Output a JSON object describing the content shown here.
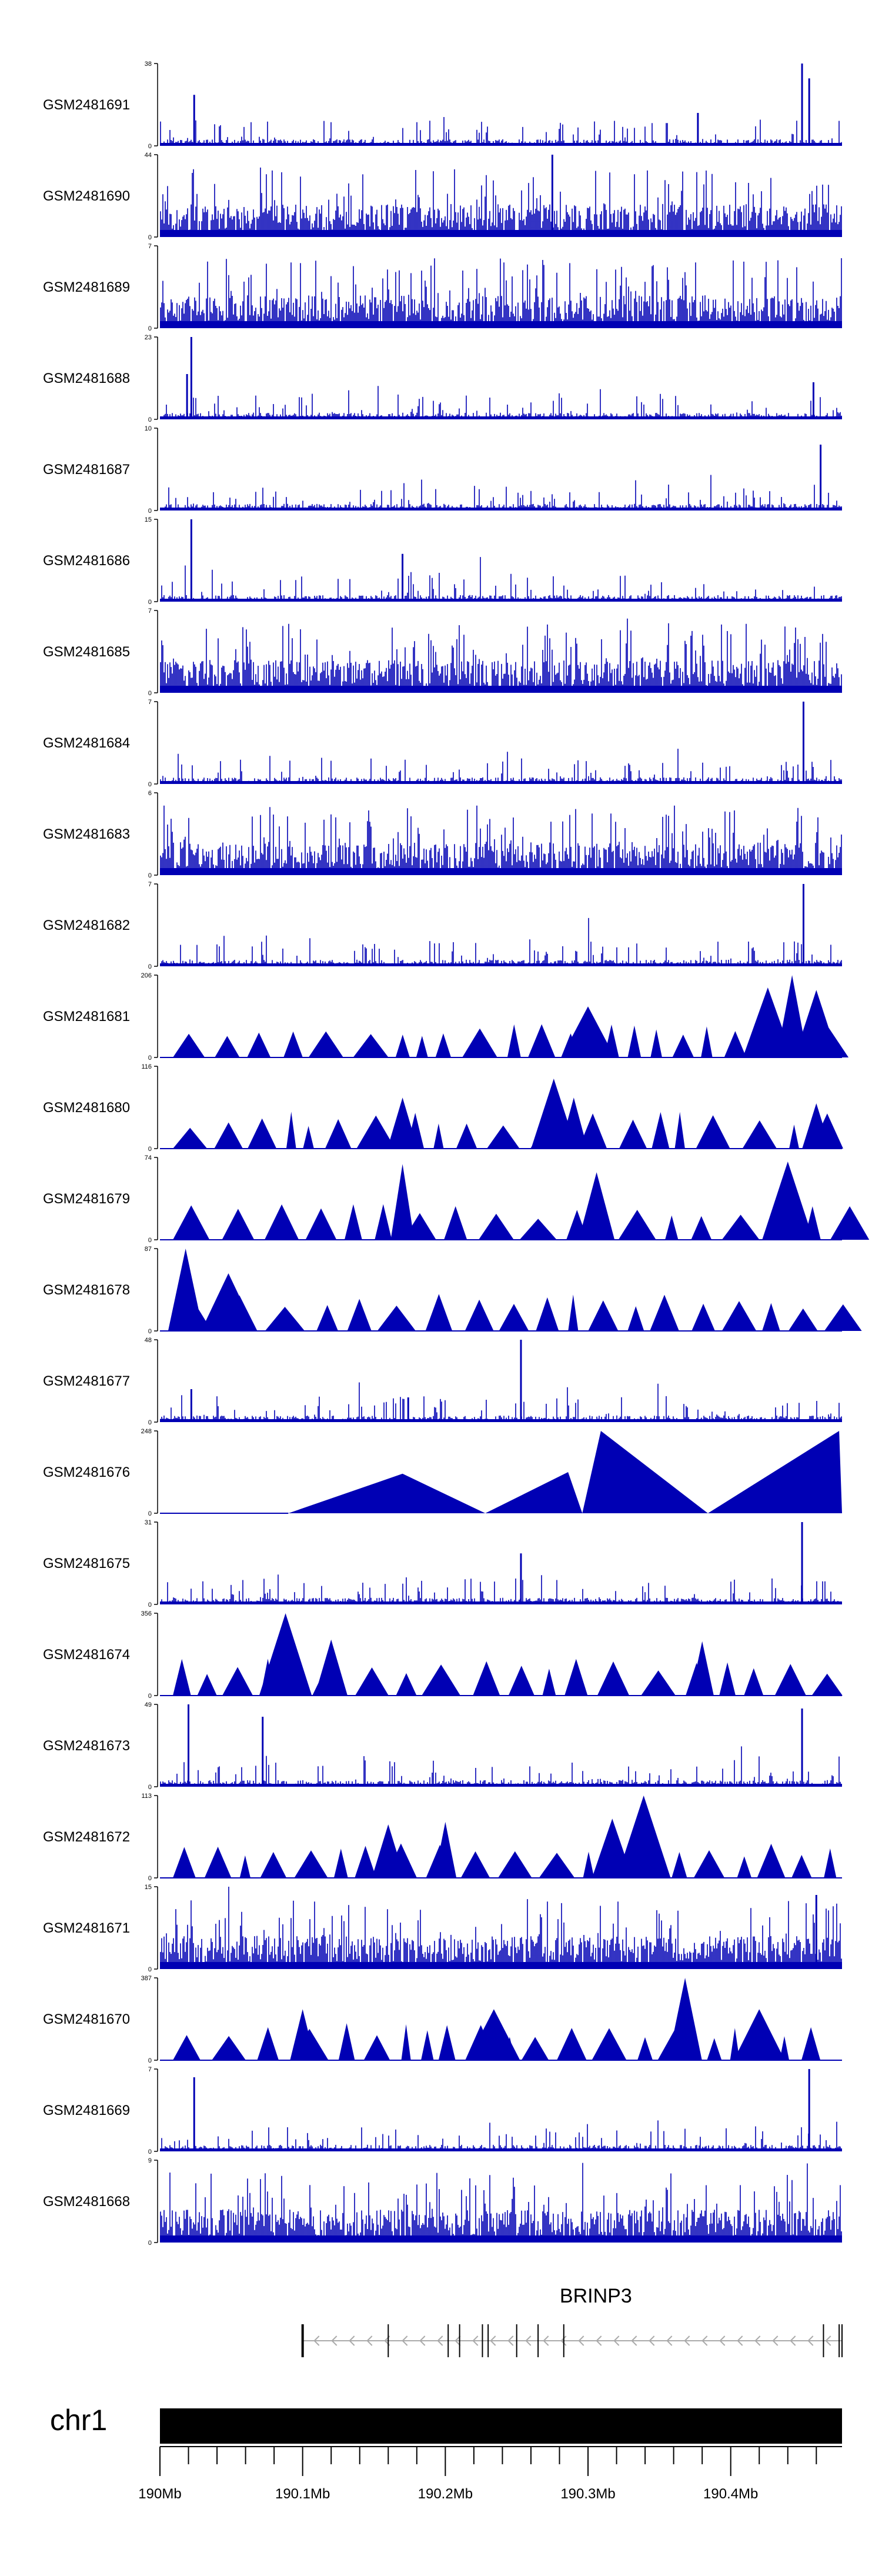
{
  "colors": {
    "signal": "#0000b4",
    "axis": "#000000",
    "gene": "#000000",
    "intron_arrow": "#aaaaaa"
  },
  "chart_data": {
    "type": "genome_tracks",
    "tracks": [
      {
        "name": "GSM2481691",
        "ymax": "38",
        "ymin": "0",
        "style": "bars",
        "seed": 11,
        "peaks": [
          {
            "x": 190.024,
            "v": 0.62
          },
          {
            "x": 190.377,
            "v": 0.4
          },
          {
            "x": 190.45,
            "v": 1.0
          },
          {
            "x": 190.455,
            "v": 0.82
          }
        ]
      },
      {
        "name": "GSM2481690",
        "ymax": "44",
        "ymin": "0",
        "style": "bars_dense",
        "seed": 12,
        "peaks": [
          {
            "x": 190.275,
            "v": 1.0
          }
        ]
      },
      {
        "name": "GSM2481689",
        "ymax": "7",
        "ymin": "0",
        "style": "bars_dense",
        "seed": 13,
        "peaks": []
      },
      {
        "name": "GSM2481688",
        "ymax": "23",
        "ymin": "0",
        "style": "bars",
        "seed": 14,
        "peaks": [
          {
            "x": 190.022,
            "v": 1.0
          },
          {
            "x": 190.019,
            "v": 0.55
          },
          {
            "x": 190.458,
            "v": 0.45
          }
        ]
      },
      {
        "name": "GSM2481687",
        "ymax": "10",
        "ymin": "0",
        "style": "bars",
        "seed": 15,
        "peaks": [
          {
            "x": 190.463,
            "v": 0.8
          }
        ]
      },
      {
        "name": "GSM2481686",
        "ymax": "15",
        "ymin": "0",
        "style": "bars",
        "seed": 16,
        "peaks": [
          {
            "x": 190.022,
            "v": 1.0
          },
          {
            "x": 190.17,
            "v": 0.58
          }
        ]
      },
      {
        "name": "GSM2481685",
        "ymax": "7",
        "ymin": "0",
        "style": "bars_dense",
        "seed": 17,
        "peaks": []
      },
      {
        "name": "GSM2481684",
        "ymax": "7",
        "ymin": "0",
        "style": "bars",
        "seed": 18,
        "peaks": [
          {
            "x": 190.451,
            "v": 1.0
          }
        ]
      },
      {
        "name": "GSM2481683",
        "ymax": "6",
        "ymin": "0",
        "style": "bars_dense",
        "seed": 19,
        "peaks": []
      },
      {
        "name": "GSM2481682",
        "ymax": "7",
        "ymin": "0",
        "style": "bars",
        "seed": 20,
        "peaks": [
          {
            "x": 190.451,
            "v": 1.0
          }
        ]
      },
      {
        "name": "GSM2481681",
        "ymax": "206",
        "ymin": "0",
        "style": "triangles",
        "seed": 21,
        "peaks": [
          {
            "x": 190.3,
            "v": 0.62
          },
          {
            "x": 190.426,
            "v": 0.85
          },
          {
            "x": 190.443,
            "v": 1.0
          },
          {
            "x": 190.46,
            "v": 0.82
          }
        ]
      },
      {
        "name": "GSM2481680",
        "ymax": "116",
        "ymin": "0",
        "style": "triangles",
        "seed": 22,
        "peaks": [
          {
            "x": 190.17,
            "v": 0.62
          },
          {
            "x": 190.276,
            "v": 0.85
          },
          {
            "x": 190.29,
            "v": 0.62
          },
          {
            "x": 190.46,
            "v": 0.55
          }
        ]
      },
      {
        "name": "GSM2481679",
        "ymax": "74",
        "ymin": "0",
        "style": "triangles",
        "seed": 23,
        "peaks": [
          {
            "x": 190.17,
            "v": 0.92
          },
          {
            "x": 190.306,
            "v": 0.82
          },
          {
            "x": 190.44,
            "v": 0.95
          }
        ]
      },
      {
        "name": "GSM2481678",
        "ymax": "87",
        "ymin": "0",
        "style": "triangles",
        "seed": 24,
        "peaks": [
          {
            "x": 190.018,
            "v": 1.0
          },
          {
            "x": 190.048,
            "v": 0.7
          }
        ]
      },
      {
        "name": "GSM2481677",
        "ymax": "48",
        "ymin": "0",
        "style": "bars",
        "seed": 25,
        "peaks": [
          {
            "x": 190.253,
            "v": 1.0
          },
          {
            "x": 190.022,
            "v": 0.4
          },
          {
            "x": 190.174,
            "v": 0.3
          }
        ]
      },
      {
        "name": "GSM2481676",
        "ymax": "248",
        "ymin": "0",
        "style": "ridges",
        "seed": 26,
        "peaks": []
      },
      {
        "name": "GSM2481675",
        "ymax": "31",
        "ymin": "0",
        "style": "bars",
        "seed": 27,
        "peaks": [
          {
            "x": 190.45,
            "v": 1.0
          },
          {
            "x": 190.253,
            "v": 0.62
          }
        ]
      },
      {
        "name": "GSM2481674",
        "ymax": "356",
        "ymin": "0",
        "style": "triangles",
        "seed": 28,
        "peaks": [
          {
            "x": 190.088,
            "v": 1.0
          },
          {
            "x": 190.12,
            "v": 0.68
          },
          {
            "x": 190.38,
            "v": 0.66
          }
        ]
      },
      {
        "name": "GSM2481673",
        "ymax": "49",
        "ymin": "0",
        "style": "bars",
        "seed": 29,
        "peaks": [
          {
            "x": 190.02,
            "v": 1.0
          },
          {
            "x": 190.072,
            "v": 0.85
          },
          {
            "x": 190.45,
            "v": 0.95
          }
        ]
      },
      {
        "name": "GSM2481672",
        "ymax": "113",
        "ymin": "0",
        "style": "triangles",
        "seed": 30,
        "peaks": [
          {
            "x": 190.339,
            "v": 1.0
          },
          {
            "x": 190.317,
            "v": 0.72
          },
          {
            "x": 190.2,
            "v": 0.68
          },
          {
            "x": 190.16,
            "v": 0.65
          }
        ]
      },
      {
        "name": "GSM2481671",
        "ymax": "15",
        "ymin": "0",
        "style": "bars_dense",
        "seed": 31,
        "peaks": [
          {
            "x": 190.46,
            "v": 0.9
          }
        ]
      },
      {
        "name": "GSM2481670",
        "ymax": "387",
        "ymin": "0",
        "style": "triangles",
        "seed": 32,
        "peaks": [
          {
            "x": 190.368,
            "v": 1.0
          },
          {
            "x": 190.1,
            "v": 0.62
          },
          {
            "x": 190.234,
            "v": 0.62
          },
          {
            "x": 190.42,
            "v": 0.62
          }
        ]
      },
      {
        "name": "GSM2481669",
        "ymax": "7",
        "ymin": "0",
        "style": "bars",
        "seed": 33,
        "peaks": [
          {
            "x": 190.024,
            "v": 0.9
          },
          {
            "x": 190.455,
            "v": 1.0
          }
        ]
      },
      {
        "name": "GSM2481668",
        "ymax": "9",
        "ymin": "0",
        "style": "bars_dense",
        "seed": 34,
        "peaks": []
      }
    ],
    "gene": {
      "name": "BRINP3",
      "strand": "-",
      "start": 190.1,
      "end": 190.478,
      "exons": [
        190.1,
        190.16,
        190.202,
        190.21,
        190.226,
        190.23,
        190.25,
        190.265,
        190.283,
        190.465,
        190.476,
        190.478
      ]
    },
    "chromosome": {
      "name": "chr1"
    },
    "axis": {
      "unit": "Mb",
      "xlim": [
        190.0,
        190.478
      ],
      "ticks": [
        {
          "value": 190.0,
          "label": "190Mb"
        },
        {
          "value": 190.1,
          "label": "190.1Mb"
        },
        {
          "value": 190.2,
          "label": "190.2Mb"
        },
        {
          "value": 190.3,
          "label": "190.3Mb"
        },
        {
          "value": 190.4,
          "label": "190.4Mb"
        }
      ],
      "minor_step": 0.02
    }
  }
}
